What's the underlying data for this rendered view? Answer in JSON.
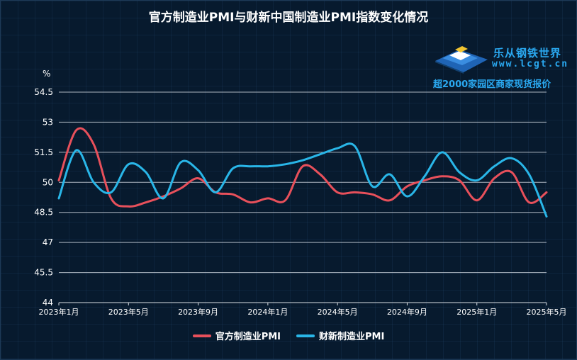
{
  "chart_data": {
    "type": "line",
    "title": "官方制造业PMI与财新中国制造业PMI指数变化情况",
    "ylabel": "%",
    "ylim": [
      44,
      54.5
    ],
    "yticks": [
      "44",
      "45.5",
      "47",
      "48.5",
      "50",
      "51.5",
      "53",
      "54.5"
    ],
    "xticks": [
      "2023年1月",
      "2023年5月",
      "2023年9月",
      "2024年1月",
      "2024年5月",
      "2024年9月",
      "2025年1月",
      "2025年5月"
    ],
    "x": [
      "2023-01",
      "2023-02",
      "2023-03",
      "2023-04",
      "2023-05",
      "2023-06",
      "2023-07",
      "2023-08",
      "2023-09",
      "2023-10",
      "2023-11",
      "2023-12",
      "2024-01",
      "2024-02",
      "2024-03",
      "2024-04",
      "2024-05",
      "2024-06",
      "2024-07",
      "2024-08",
      "2024-09",
      "2024-10",
      "2024-11",
      "2024-12",
      "2025-01",
      "2025-02",
      "2025-03",
      "2025-04",
      "2025-05"
    ],
    "grid": true,
    "legend": "bottom",
    "series": [
      {
        "name": "官方制造业PMI",
        "color": "#e8505b",
        "values": [
          50.1,
          52.6,
          51.9,
          49.2,
          48.8,
          49.0,
          49.3,
          49.7,
          50.2,
          49.5,
          49.4,
          49.0,
          49.2,
          49.1,
          50.8,
          50.4,
          49.5,
          49.5,
          49.4,
          49.1,
          49.8,
          50.1,
          50.3,
          50.1,
          49.1,
          50.2,
          50.5,
          49.0,
          49.5
        ]
      },
      {
        "name": "财新制造业PMI",
        "color": "#29b6e8",
        "values": [
          49.2,
          51.6,
          50.0,
          49.5,
          50.9,
          50.5,
          49.2,
          51.0,
          50.6,
          49.5,
          50.7,
          50.8,
          50.8,
          50.9,
          51.1,
          51.4,
          51.7,
          51.8,
          49.8,
          50.4,
          49.3,
          50.3,
          51.5,
          50.5,
          50.1,
          50.8,
          51.2,
          50.4,
          48.3
        ]
      }
    ]
  },
  "watermark": {
    "name": "乐从钢铁世界",
    "url": "www.lcgt.cn",
    "tagline": "超2000家园区商家现货报价"
  }
}
